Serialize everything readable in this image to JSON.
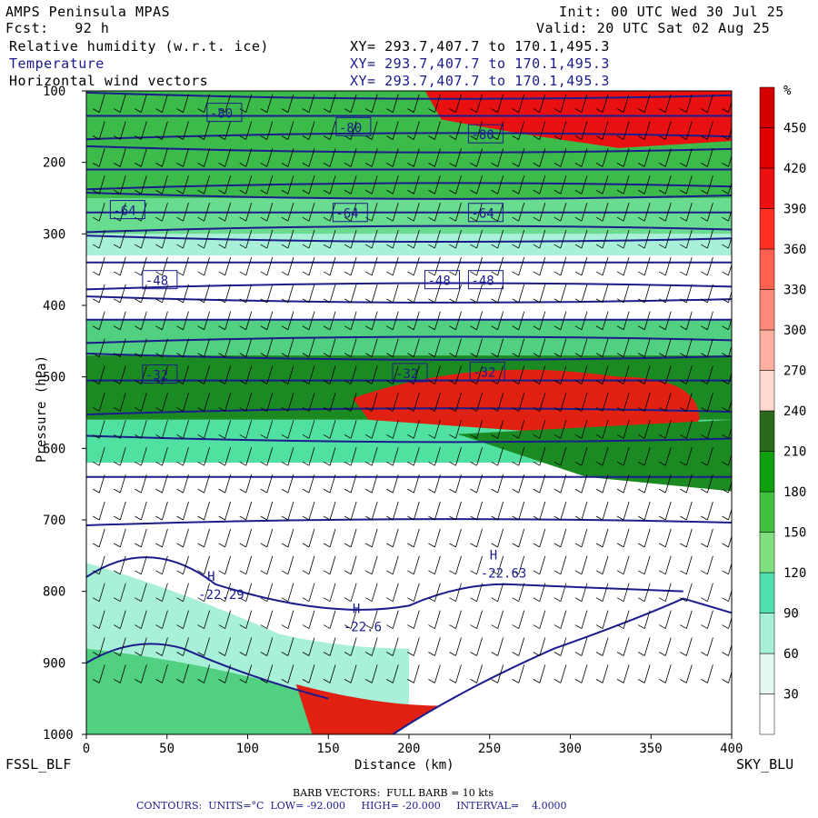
{
  "header": {
    "model": "AMPS Peninsula MPAS",
    "forecast": "Fcst:   92 h",
    "init": "Init: 00 UTC Wed 30 Jul 25",
    "valid": "Valid: 20 UTC Sat 02 Aug 25",
    "fields": [
      {
        "name": "Relative humidity (w.r.t. ice)",
        "xy": "XY= 293.7,407.7 to 170.1,495.3"
      },
      {
        "name": "Temperature",
        "xy": "XY= 293.7,407.7 to 170.1,495.3"
      },
      {
        "name": "Horizontal wind vectors",
        "xy": "XY= 293.7,407.7 to 170.1,495.3"
      }
    ]
  },
  "chart_data": {
    "type": "heatmap",
    "ylabel": "Pressure (hPa)",
    "xlabel": "Distance (km)",
    "xlim": [
      0,
      400
    ],
    "ylim": [
      1000,
      100
    ],
    "x_ticks": [
      0,
      50,
      100,
      150,
      200,
      250,
      300,
      350,
      400
    ],
    "y_ticks": [
      100,
      200,
      300,
      400,
      500,
      600,
      700,
      800,
      900,
      1000
    ],
    "left_station": "FSSL_BLF",
    "right_station": "SKY_BLU",
    "colorbar": {
      "unit": "%",
      "ticks": [
        30,
        60,
        90,
        120,
        150,
        180,
        210,
        240,
        270,
        300,
        330,
        360,
        390,
        420,
        450
      ],
      "colors": [
        "#ffffff",
        "#e6f7f0",
        "#a8f0d8",
        "#50e0b0",
        "#80e080",
        "#40c040",
        "#10a010",
        "#2a6a1a",
        "#ffd8d0",
        "#ffb0a0",
        "#ff8878",
        "#ff6050",
        "#ff3020",
        "#ee1010",
        "#e00000",
        "#d40000"
      ]
    },
    "contour_labels": [
      {
        "text": "-80",
        "x": 85,
        "p": 130
      },
      {
        "text": "-80",
        "x": 165,
        "p": 150
      },
      {
        "text": "-80",
        "x": 247,
        "p": 160
      },
      {
        "text": "-64",
        "x": 25,
        "p": 266
      },
      {
        "text": "-64",
        "x": 163,
        "p": 270
      },
      {
        "text": "-64",
        "x": 247,
        "p": 270
      },
      {
        "text": "-48",
        "x": 45,
        "p": 364
      },
      {
        "text": "-48",
        "x": 220,
        "p": 364
      },
      {
        "text": "-48",
        "x": 247,
        "p": 364
      },
      {
        "text": "-32",
        "x": 45,
        "p": 496
      },
      {
        "text": "-32",
        "x": 200,
        "p": 494
      },
      {
        "text": "-32",
        "x": 248,
        "p": 492
      }
    ],
    "highs": [
      {
        "label": "H",
        "value": "-22.29",
        "x": 75,
        "p": 785
      },
      {
        "label": "H",
        "value": "-22.6",
        "x": 165,
        "p": 830
      },
      {
        "label": "H",
        "value": "-22.63",
        "x": 250,
        "p": 755
      }
    ],
    "footer": {
      "barb": "BARB VECTORS:  FULL BARB = 10 kts",
      "contours": "CONTOURS:  UNITS=°C  LOW= -92.000     HIGH= -20.000     INTERVAL=    4.0000"
    }
  }
}
